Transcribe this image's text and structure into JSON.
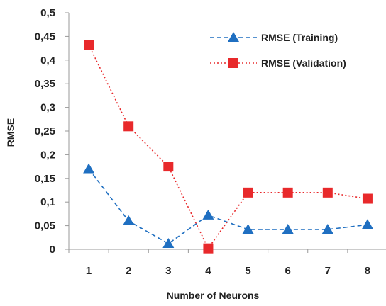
{
  "chart_data": {
    "type": "line",
    "xlabel": "Number of Neurons",
    "ylabel": "RMSE",
    "x": [
      1,
      2,
      3,
      4,
      5,
      6,
      7,
      8
    ],
    "x_tick_labels": [
      "1",
      "2",
      "3",
      "4",
      "5",
      "6",
      "7",
      "8"
    ],
    "ylim": [
      0,
      0.5
    ],
    "y_ticks": [
      0,
      0.05,
      0.1,
      0.15,
      0.2,
      0.25,
      0.3,
      0.35,
      0.4,
      0.45,
      0.5
    ],
    "y_tick_labels": [
      "0",
      "0,05",
      "0,1",
      "0,15",
      "0,2",
      "0,25",
      "0,3",
      "0,35",
      "0,4",
      "0,45",
      "0,5"
    ],
    "grid": false,
    "legend_position": "top-right",
    "series": [
      {
        "name": "RMSE (Training)",
        "values": [
          0.17,
          0.06,
          0.012,
          0.072,
          0.042,
          0.042,
          0.042,
          0.052
        ],
        "color": "#1f6fc1",
        "marker": "triangle",
        "line_style": "dashed"
      },
      {
        "name": "RMSE (Validation)",
        "values": [
          0.432,
          0.26,
          0.175,
          0.002,
          0.12,
          0.12,
          0.12,
          0.107
        ],
        "color": "#e8292b",
        "marker": "square",
        "line_style": "dotted"
      }
    ]
  }
}
